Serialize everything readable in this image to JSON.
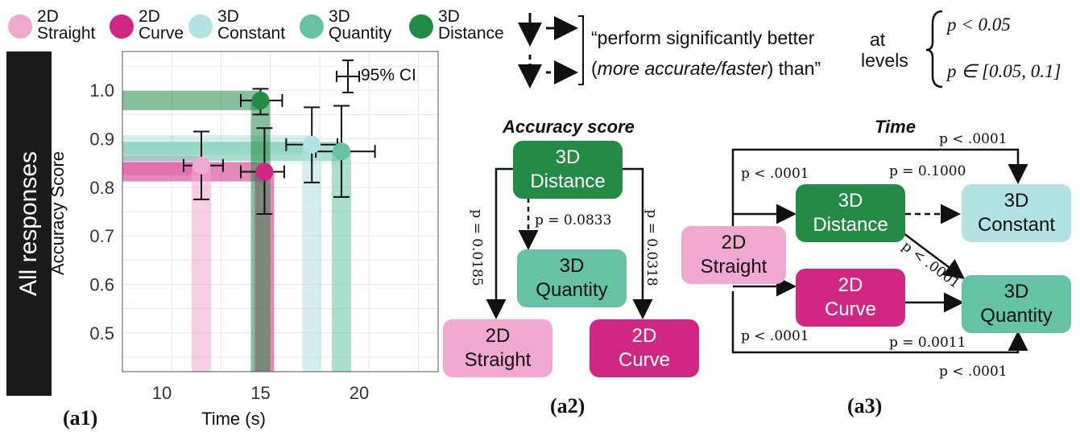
{
  "legend": [
    {
      "line1": "2D",
      "line2": "Straight",
      "color": "#f0a8d0"
    },
    {
      "line1": "2D",
      "line2": "Curve",
      "color": "#d02782"
    },
    {
      "line1": "3D",
      "line2": "Constant",
      "color": "#b3e2e2"
    },
    {
      "line1": "3D",
      "line2": "Quantity",
      "color": "#66c2a5"
    },
    {
      "line1": "3D",
      "line2": "Distance",
      "color": "#238b45"
    }
  ],
  "sidebar_label": "All responses",
  "chart_data": {
    "type": "scatter",
    "xlabel": "Time (s)",
    "ylabel": "Accuracy Score",
    "xlim": [
      8,
      24
    ],
    "ylim": [
      0.42,
      1.08
    ],
    "xticks": [
      "10",
      "15",
      "20"
    ],
    "yticks": [
      "0.5",
      "0.6",
      "0.7",
      "0.8",
      "0.9",
      "1.0"
    ],
    "grid": true,
    "ci_legend": "95% CI",
    "series": [
      {
        "name": "2D Straight",
        "x": 12.0,
        "y": 0.845,
        "x_err": [
          11.1,
          13.1
        ],
        "y_err": [
          0.775,
          0.915
        ],
        "color": "#f0a8d0"
      },
      {
        "name": "2D Curve",
        "x": 15.2,
        "y": 0.832,
        "x_err": [
          14.0,
          16.2
        ],
        "y_err": [
          0.745,
          0.922
        ],
        "color": "#d02782"
      },
      {
        "name": "3D Constant",
        "x": 17.6,
        "y": 0.888,
        "x_err": [
          16.3,
          18.9
        ],
        "y_err": [
          0.81,
          0.965
        ],
        "color": "#b3e2e2"
      },
      {
        "name": "3D Quantity",
        "x": 19.1,
        "y": 0.874,
        "x_err": [
          17.8,
          20.8
        ],
        "y_err": [
          0.78,
          0.968
        ],
        "color": "#66c2a5"
      },
      {
        "name": "3D Distance",
        "x": 15.0,
        "y": 0.979,
        "x_err": [
          14.0,
          16.1
        ],
        "y_err": [
          0.95,
          1.003
        ],
        "color": "#238b45"
      }
    ]
  },
  "panel_labels": {
    "a1": "(a1)",
    "a2": "(a2)",
    "a3": "(a3)"
  },
  "key": {
    "text_line1": "“perform significantly better",
    "text_line2_italic": "more accurate/faster",
    "text_line2_pre": "(",
    "text_line2_post": ") than”",
    "at": "at",
    "levels": "levels",
    "p1": "p < 0.05",
    "p2": "p ∈ [0.05, 0.1]"
  },
  "accuracy": {
    "title": "Accuracy score",
    "distance": [
      "3D",
      "Distance"
    ],
    "quantity": [
      "3D",
      "Quantity"
    ],
    "straight": [
      "2D",
      "Straight"
    ],
    "curve": [
      "2D",
      "Curve"
    ],
    "p_left": "p = 0.0185",
    "p_mid": "p = 0.0833",
    "p_right": "p = 0.0318"
  },
  "time": {
    "title": "Time",
    "straight": [
      "2D",
      "Straight"
    ],
    "distance": [
      "3D",
      "Distance"
    ],
    "curve": [
      "2D",
      "Curve"
    ],
    "constant": [
      "3D",
      "Constant"
    ],
    "quantity": [
      "3D",
      "Quantity"
    ],
    "p_top": "p < .0001",
    "p_left_top": "p < .0001",
    "p_dist_const": "p = 0.1000",
    "p_diag": "p < .0001",
    "p_left_bottom": "p < .0001",
    "p_curve_quant": "p = 0.0011",
    "p_bottom": "p < .0001"
  }
}
